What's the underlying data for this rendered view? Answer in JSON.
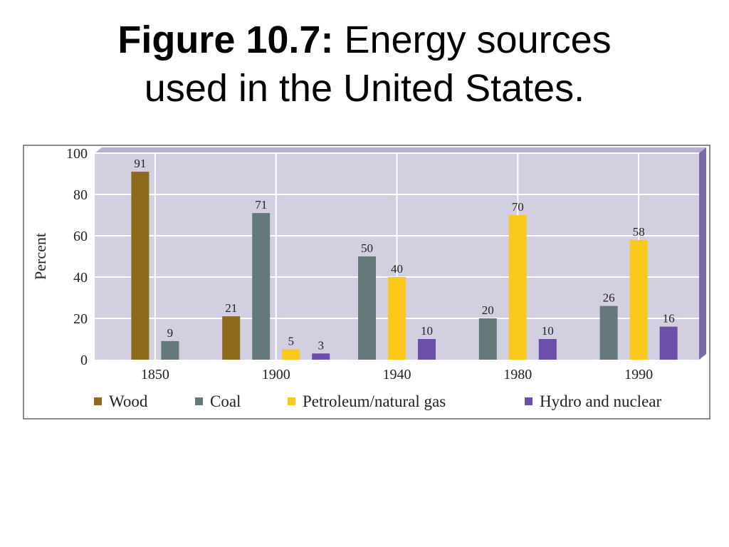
{
  "title": {
    "bold": "Figure 10.7:",
    "line1": "Energy sources",
    "line2": "used in the United States."
  },
  "chart_data": {
    "type": "bar",
    "ylabel": "Percent",
    "ylim": [
      0,
      100
    ],
    "yticks": [
      0,
      20,
      40,
      60,
      80,
      100
    ],
    "grid": true,
    "legend_position": "bottom",
    "categories": [
      "1850",
      "1900",
      "1940",
      "1980",
      "1990"
    ],
    "series": [
      {
        "name": "Wood",
        "color": "#8b6a1c",
        "values": [
          91,
          21,
          null,
          null,
          null
        ]
      },
      {
        "name": "Coal",
        "color": "#65797a",
        "values": [
          9,
          71,
          50,
          20,
          26
        ]
      },
      {
        "name": "Petroleum/natural gas",
        "color": "#fbc81d",
        "values": [
          null,
          5,
          40,
          70,
          58
        ]
      },
      {
        "name": "Hydro and nuclear",
        "color": "#6b4fa8",
        "values": [
          null,
          3,
          10,
          10,
          16
        ]
      }
    ],
    "plot_background": "#d2cfe0",
    "plot_side_color": "#7a6aa3",
    "plot_top_color": "#b6b0cf"
  }
}
